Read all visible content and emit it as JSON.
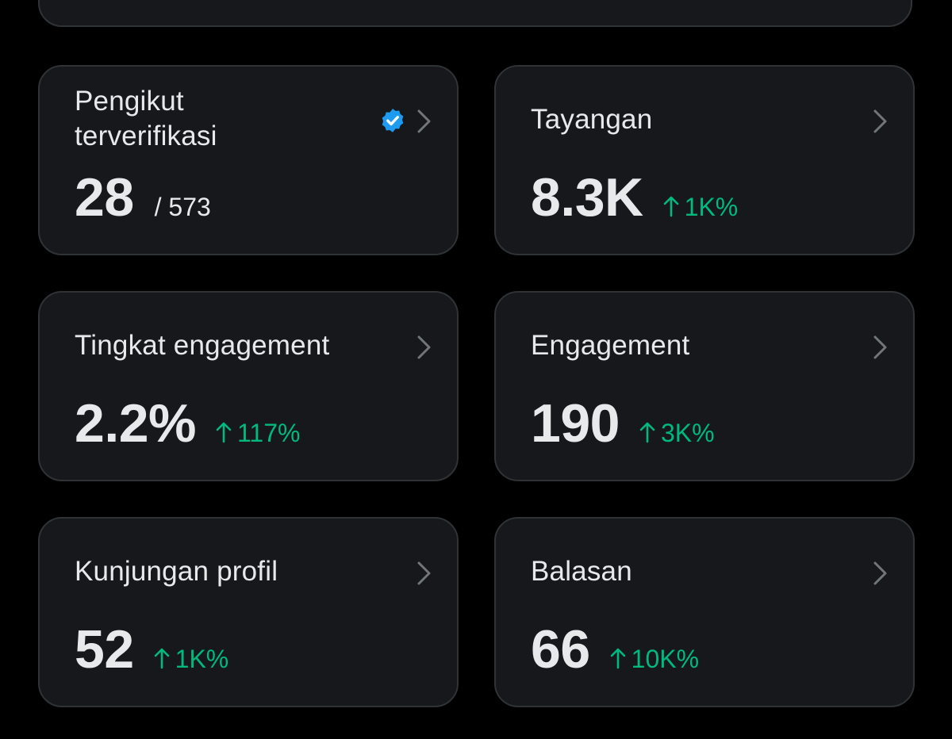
{
  "colors": {
    "background": "#000000",
    "card": "#16181c",
    "card_border": "#2f3336",
    "text": "#e7e9ea",
    "positive": "#00ba7c",
    "verified": "#1d9bf0",
    "chevron": "#71767b"
  },
  "cards": [
    {
      "label": "Pengikut terverifikasi",
      "value": "28",
      "total": "/ 573",
      "icon": "verified-badge-icon"
    },
    {
      "label": "Tayangan",
      "value": "8.3K",
      "delta": "1K%",
      "delta_icon": "arrow-up-icon"
    },
    {
      "label": "Tingkat engagement",
      "value": "2.2%",
      "delta": "117%",
      "delta_icon": "arrow-up-icon"
    },
    {
      "label": "Engagement",
      "value": "190",
      "delta": "3K%",
      "delta_icon": "arrow-up-icon"
    },
    {
      "label": "Kunjungan profil",
      "value": "52",
      "delta": "1K%",
      "delta_icon": "arrow-up-icon"
    },
    {
      "label": "Balasan",
      "value": "66",
      "delta": "10K%",
      "delta_icon": "arrow-up-icon"
    }
  ]
}
